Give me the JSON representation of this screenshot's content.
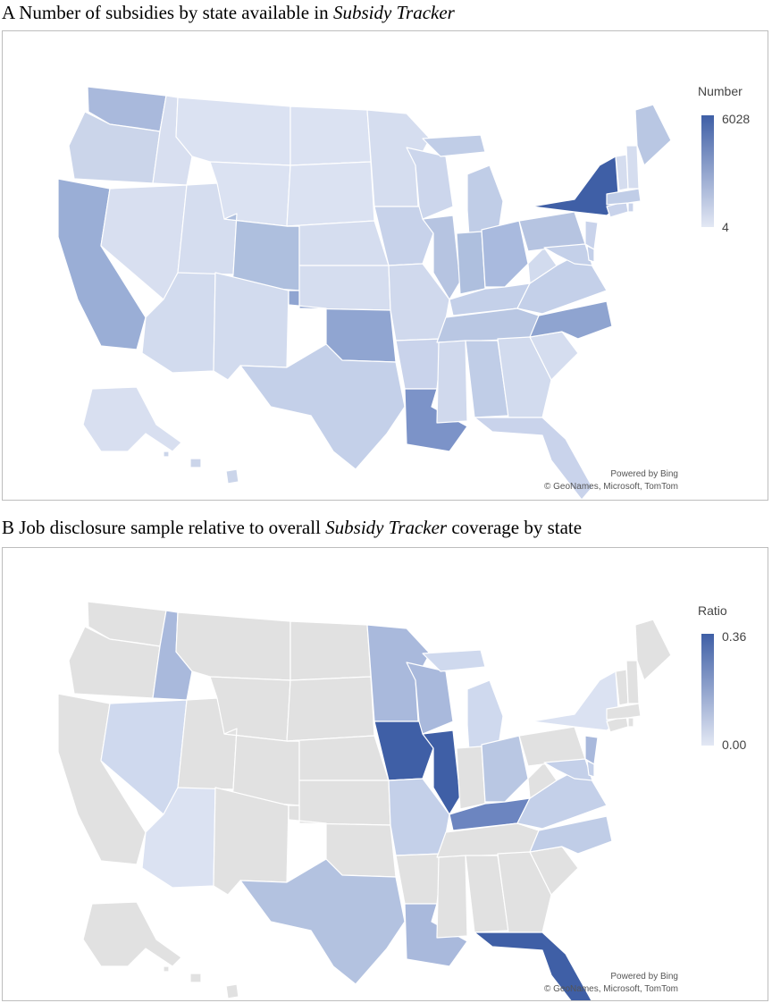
{
  "panel_a": {
    "caption_prefix": "A Number of subsidies by state available in ",
    "caption_italic": "Subsidy Tracker",
    "caption_suffix": "",
    "legend": {
      "title": "Number",
      "max_label": "6028",
      "min_label": "4",
      "max_color": "#3f5fa6",
      "min_color": "#e3e8f4"
    },
    "attribution": {
      "line1": "Powered by Bing",
      "line2": "© GeoNames, Microsoft, TomTom"
    },
    "state_colors": {
      "WA": "#a9b9dc",
      "OR": "#cbd5ea",
      "CA": "#9aaed6",
      "ID": "#d8dff0",
      "NV": "#d8dff0",
      "AZ": "#d2dbee",
      "UT": "#d5ddef",
      "MT": "#dbe2f2",
      "WY": "#dbe2f2",
      "CO": "#aebfde",
      "NM": "#d2dbee",
      "ND": "#dbe2f2",
      "SD": "#dbe2f2",
      "NE": "#d5ddef",
      "KS": "#d5ddef",
      "OK": "#90a5d1",
      "TX": "#c4d0e9",
      "MN": "#d5ddef",
      "IA": "#c7d2ea",
      "MO": "#d0d9ed",
      "AR": "#c9d3eb",
      "LA": "#7c93c8",
      "WI": "#ccd6ec",
      "IL": "#b6c4e1",
      "MI": "#c0cde7",
      "IN": "#aebfde",
      "OH": "#a9bade",
      "KY": "#c4d0e9",
      "TN": "#b9c7e3",
      "MS": "#d0d9ed",
      "AL": "#c0cde7",
      "GA": "#d2dbee",
      "FL": "#c9d3eb",
      "SC": "#d5ddef",
      "NC": "#8fa4d0",
      "VA": "#c4d0e9",
      "WV": "#d2dbee",
      "PA": "#b6c4e1",
      "NY": "#3f5fa6",
      "NJ": "#c9d3eb",
      "MD": "#c4d0e9",
      "DE": "#c4d0e9",
      "CT": "#c9d3eb",
      "RI": "#c9d3eb",
      "MA": "#c0cde7",
      "VT": "#d5ddef",
      "NH": "#d5ddef",
      "ME": "#b9c7e3",
      "AK": "#d8dff0",
      "HI": "#cbd5ea"
    }
  },
  "panel_b": {
    "caption_prefix": "B Job disclosure sample relative to overall ",
    "caption_italic": "Subsidy Tracker",
    "caption_suffix": " coverage by state",
    "legend": {
      "title": "Ratio",
      "max_label": "0.36",
      "min_label": "0.00",
      "max_color": "#3f5fa6",
      "min_color": "#e3e8f4"
    },
    "attribution": {
      "line1": "Powered by Bing",
      "line2": "© GeoNames, Microsoft, TomTom"
    },
    "state_colors": {
      "WA": "#e1e1e1",
      "OR": "#e1e1e1",
      "CA": "#e1e1e1",
      "ID": "#a9b9dc",
      "NV": "#cfd9ee",
      "AZ": "#dbe2f2",
      "UT": "#e1e1e1",
      "MT": "#e1e1e1",
      "WY": "#e1e1e1",
      "CO": "#e1e1e1",
      "NM": "#e1e1e1",
      "ND": "#e1e1e1",
      "SD": "#e1e1e1",
      "NE": "#e1e1e1",
      "KS": "#e1e1e1",
      "OK": "#e1e1e1",
      "TX": "#b3c2e0",
      "MN": "#a9b9dc",
      "IA": "#3f5fa6",
      "MO": "#c4d0e9",
      "AR": "#e1e1e1",
      "LA": "#a9b9dc",
      "WI": "#a9b9dc",
      "IL": "#3f5fa6",
      "MI": "#cfd9ee",
      "IN": "#e1e1e1",
      "OH": "#b9c7e3",
      "KY": "#6c85c0",
      "TN": "#e1e1e1",
      "MS": "#e1e1e1",
      "AL": "#e1e1e1",
      "GA": "#e1e1e1",
      "FL": "#3f5fa6",
      "SC": "#e1e1e1",
      "NC": "#c0cde7",
      "VA": "#c4d0e9",
      "WV": "#e1e1e1",
      "PA": "#e1e1e1",
      "NY": "#dbe2f2",
      "NJ": "#a9b9dc",
      "MD": "#c4d0e9",
      "DE": "#c4d0e9",
      "CT": "#e1e1e1",
      "RI": "#e1e1e1",
      "MA": "#e1e1e1",
      "VT": "#e1e1e1",
      "NH": "#e1e1e1",
      "ME": "#e1e1e1",
      "AK": "#e1e1e1",
      "HI": "#e1e1e1"
    }
  }
}
